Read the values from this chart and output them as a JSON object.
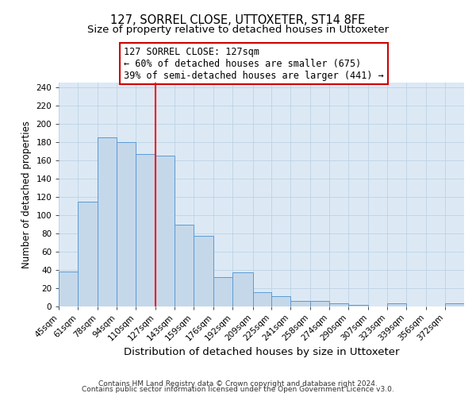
{
  "title": "127, SORREL CLOSE, UTTOXETER, ST14 8FE",
  "subtitle": "Size of property relative to detached houses in Uttoxeter",
  "xlabel": "Distribution of detached houses by size in Uttoxeter",
  "ylabel": "Number of detached properties",
  "bin_labels": [
    "45sqm",
    "61sqm",
    "78sqm",
    "94sqm",
    "110sqm",
    "127sqm",
    "143sqm",
    "159sqm",
    "176sqm",
    "192sqm",
    "209sqm",
    "225sqm",
    "241sqm",
    "258sqm",
    "274sqm",
    "290sqm",
    "307sqm",
    "323sqm",
    "339sqm",
    "356sqm",
    "372sqm"
  ],
  "bin_edges": [
    45,
    61,
    78,
    94,
    110,
    127,
    143,
    159,
    176,
    192,
    209,
    225,
    241,
    258,
    274,
    290,
    307,
    323,
    339,
    356,
    372,
    388
  ],
  "bar_heights": [
    38,
    115,
    185,
    180,
    167,
    165,
    89,
    77,
    32,
    37,
    15,
    11,
    6,
    6,
    3,
    1,
    0,
    3,
    0,
    0,
    3
  ],
  "bar_color": "#c5d8ea",
  "bar_edge_color": "#5b9bd5",
  "vline_x": 127,
  "vline_color": "red",
  "annotation_line1": "127 SORREL CLOSE: 127sqm",
  "annotation_line2": "← 60% of detached houses are smaller (675)",
  "annotation_line3": "39% of semi-detached houses are larger (441) →",
  "annotation_box_edge_color": "#cc0000",
  "annotation_fontsize": 8.5,
  "ylim": [
    0,
    245
  ],
  "yticks": [
    0,
    20,
    40,
    60,
    80,
    100,
    120,
    140,
    160,
    180,
    200,
    220,
    240
  ],
  "grid_color": "#b8cfe0",
  "background_color": "#dce9f5",
  "footer_line1": "Contains HM Land Registry data © Crown copyright and database right 2024.",
  "footer_line2": "Contains public sector information licensed under the Open Government Licence v3.0.",
  "title_fontsize": 10.5,
  "subtitle_fontsize": 9.5,
  "xlabel_fontsize": 9.5,
  "ylabel_fontsize": 8.5,
  "tick_fontsize": 7.5,
  "footer_fontsize": 6.5
}
